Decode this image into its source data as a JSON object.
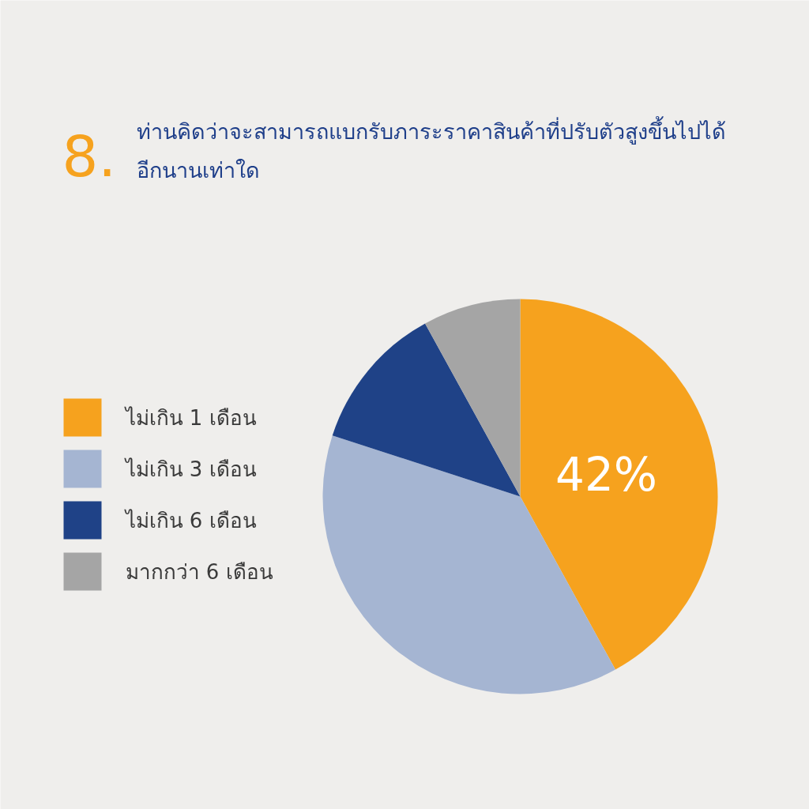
{
  "chart_data": {
    "type": "pie",
    "title": "ท่านคิดว่าจะสามารถแบกรับภาระราคาสินค้าที่ปรับตัวสูงขึ้นไปได้\nอีกนานเท่าใด",
    "annotations": [
      "8."
    ],
    "categories": [
      "ไม่เกิน 1 เดือน",
      "ไม่เกิน 3 เดือน",
      "ไม่เกิน 6 เดือน",
      "มากกว่า 6 เดือน"
    ],
    "values": [
      42,
      38,
      12,
      8
    ],
    "colors": [
      "#f6a21e",
      "#a5b5d2",
      "#1f4287",
      "#a5a5a5"
    ],
    "value_labels": [
      "42%",
      null,
      null,
      null
    ],
    "legend": "left"
  }
}
